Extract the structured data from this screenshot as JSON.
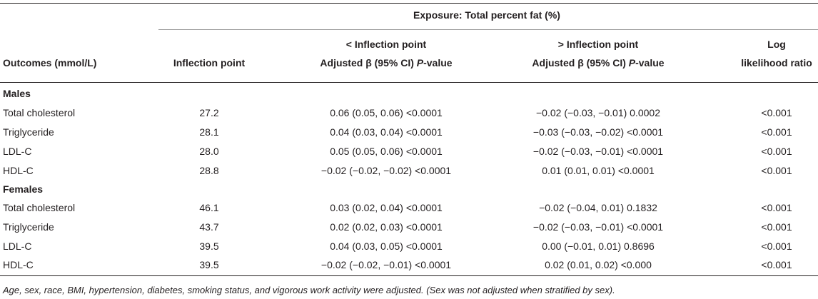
{
  "header": {
    "exposure": "Exposure: Total percent fat (%)",
    "col_outcomes": "Outcomes (mmol/L)",
    "col_inflection": "Inflection point",
    "below_title": "< Inflection point",
    "below_sub_pre": "Adjusted β (95% CI) ",
    "below_sub_italic": "P",
    "below_sub_post": "-value",
    "above_title": "> Inflection point",
    "above_sub_pre": "Adjusted β (95% CI) ",
    "above_sub_italic": "P",
    "above_sub_post": "-value",
    "llr_line1": "Log",
    "llr_line2": "likelihood ratio"
  },
  "sections": [
    {
      "label": "Males",
      "rows": [
        {
          "outcome": "Total cholesterol",
          "inflection": "27.2",
          "below": "0.06 (0.05, 0.06) <0.0001",
          "above": "−0.02 (−0.03, −0.01) 0.0002",
          "llr": "<0.001"
        },
        {
          "outcome": "Triglyceride",
          "inflection": "28.1",
          "below": "0.04 (0.03, 0.04) <0.0001",
          "above": "−0.03 (−0.03, −0.02) <0.0001",
          "llr": "<0.001"
        },
        {
          "outcome": "LDL-C",
          "inflection": "28.0",
          "below": "0.05 (0.05, 0.06) <0.0001",
          "above": "−0.02 (−0.03, −0.01) <0.0001",
          "llr": "<0.001"
        },
        {
          "outcome": "HDL-C",
          "inflection": "28.8",
          "below": "−0.02 (−0.02, −0.02) <0.0001",
          "above": "0.01 (0.01, 0.01) <0.0001",
          "llr": "<0.001"
        }
      ]
    },
    {
      "label": "Females",
      "rows": [
        {
          "outcome": "Total cholesterol",
          "inflection": "46.1",
          "below": "0.03 (0.02, 0.04) <0.0001",
          "above": "−0.02 (−0.04, 0.01) 0.1832",
          "llr": "<0.001"
        },
        {
          "outcome": "Triglyceride",
          "inflection": "43.7",
          "below": "0.02 (0.02, 0.03) <0.0001",
          "above": "−0.02 (−0.03, −0.01) <0.0001",
          "llr": "<0.001"
        },
        {
          "outcome": "LDL-C",
          "inflection": "39.5",
          "below": "0.04 (0.03, 0.05) <0.0001",
          "above": "0.00 (−0.01, 0.01) 0.8696",
          "llr": "<0.001"
        },
        {
          "outcome": "HDL-C",
          "inflection": "39.5",
          "below": "−0.02 (−0.02, −0.01) <0.0001",
          "above": "0.02 (0.01, 0.02) <0.000",
          "llr": "<0.001"
        }
      ]
    }
  ],
  "footnote": "Age, sex, race, BMI, hypertension, diabetes, smoking status, and vigorous work activity were adjusted. (Sex was not adjusted when stratified by sex)."
}
